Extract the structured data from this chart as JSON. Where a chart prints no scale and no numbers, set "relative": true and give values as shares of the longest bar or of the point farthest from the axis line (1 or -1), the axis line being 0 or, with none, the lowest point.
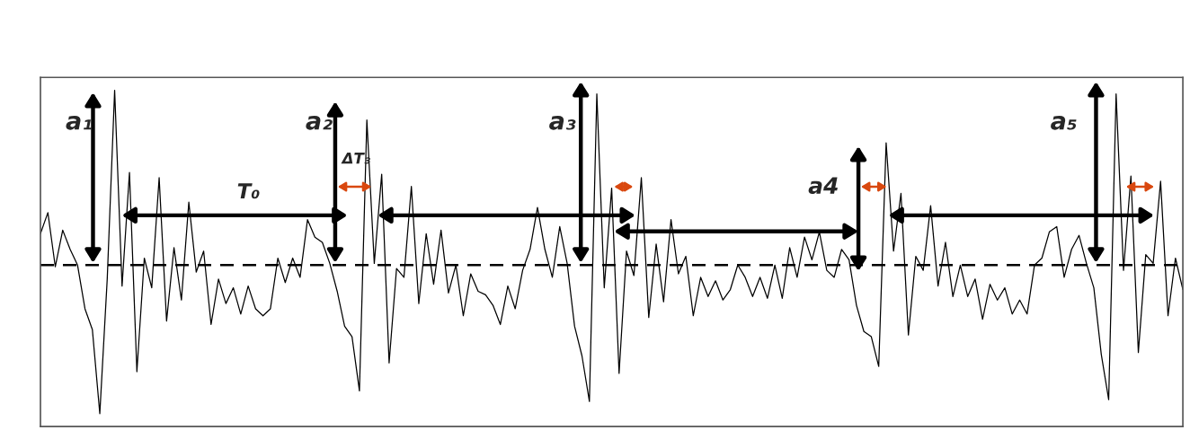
{
  "chart_data": {
    "type": "line",
    "relative": true,
    "grid": false,
    "legend": false,
    "marker": "none",
    "line_style": "solid",
    "categories": [
      null,
      null,
      null,
      null,
      null,
      null,
      null,
      null,
      null,
      null,
      null,
      null,
      null,
      null,
      null,
      null,
      null,
      null,
      null,
      null,
      null,
      null,
      null,
      null,
      null,
      null,
      null,
      null,
      null,
      null,
      null,
      null,
      null,
      null,
      null,
      null,
      null,
      null,
      null,
      null,
      null,
      null,
      null,
      null,
      null,
      null,
      null,
      null,
      null,
      null,
      null,
      null,
      null,
      null,
      null,
      null,
      null,
      null,
      null,
      null,
      null,
      null,
      null,
      null,
      null,
      null,
      null,
      null,
      null,
      null,
      null,
      null,
      null,
      null,
      null,
      null,
      null,
      null,
      null,
      null,
      null,
      null,
      null,
      null,
      null,
      null,
      null,
      null,
      null,
      null,
      null,
      null,
      null,
      null,
      null,
      null,
      null,
      null,
      null,
      null,
      null,
      null,
      null,
      null,
      null,
      null,
      null,
      null,
      null,
      null,
      null,
      null,
      null,
      null,
      null,
      null,
      null,
      null,
      null,
      null,
      null,
      null,
      null,
      null,
      null,
      null,
      null,
      null,
      null,
      null,
      null,
      null,
      null,
      null,
      null,
      null,
      null,
      null,
      null,
      null,
      null,
      null,
      null,
      null,
      null,
      null,
      null,
      null,
      null,
      null,
      null,
      null,
      null,
      null,
      null
    ],
    "series": [
      {
        "color": "#000000",
        "values": [
          0.18,
          0.3,
          -0.01,
          0.2,
          0.09,
          0.0,
          -0.25,
          -0.37,
          -0.85,
          -0.08,
          1.0,
          -0.12,
          0.53,
          -0.61,
          0.04,
          -0.13,
          0.5,
          -0.32,
          0.1,
          -0.2,
          0.36,
          -0.04,
          0.08,
          -0.34,
          -0.08,
          -0.22,
          -0.13,
          -0.28,
          -0.12,
          -0.25,
          -0.29,
          -0.25,
          0.04,
          -0.1,
          0.04,
          -0.07,
          0.26,
          0.16,
          0.13,
          0.01,
          -0.15,
          -0.35,
          -0.41,
          -0.72,
          0.83,
          0.01,
          0.52,
          -0.56,
          -0.02,
          -0.07,
          0.45,
          -0.22,
          0.18,
          -0.11,
          0.2,
          -0.16,
          0.0,
          -0.29,
          -0.05,
          -0.15,
          -0.17,
          -0.23,
          -0.34,
          -0.12,
          -0.25,
          -0.03,
          0.09,
          0.33,
          0.09,
          -0.07,
          0.22,
          0.01,
          -0.35,
          -0.52,
          -0.78,
          0.98,
          -0.13,
          0.44,
          -0.62,
          0.08,
          -0.06,
          0.5,
          -0.3,
          0.12,
          -0.21,
          0.26,
          -0.05,
          0.05,
          -0.29,
          -0.07,
          -0.18,
          -0.09,
          -0.2,
          -0.14,
          0.0,
          -0.07,
          -0.18,
          -0.07,
          -0.19,
          0.0,
          -0.19,
          0.1,
          -0.07,
          0.16,
          0.03,
          0.19,
          -0.03,
          -0.07,
          0.09,
          0.03,
          -0.23,
          -0.38,
          -0.41,
          -0.58,
          0.7,
          0.08,
          0.41,
          -0.4,
          0.05,
          -0.03,
          0.34,
          -0.12,
          0.13,
          -0.18,
          0.0,
          -0.18,
          -0.08,
          -0.31,
          -0.11,
          -0.2,
          -0.13,
          -0.28,
          -0.2,
          -0.28,
          0.0,
          0.04,
          0.19,
          0.22,
          -0.07,
          0.09,
          0.17,
          0.01,
          -0.13,
          -0.51,
          -0.77,
          0.98,
          -0.03,
          0.51,
          -0.5,
          0.06,
          0.01,
          0.48,
          -0.29,
          0.04,
          -0.14
        ]
      }
    ],
    "ref_lines": [
      {
        "axis": "y",
        "value": 0,
        "color": "#000000",
        "line_style": "dashed"
      }
    ],
    "annotations": [
      "a₁",
      "a₂",
      "ΔT₃",
      "a₃",
      "T₀",
      "a4",
      "a₅"
    ]
  }
}
